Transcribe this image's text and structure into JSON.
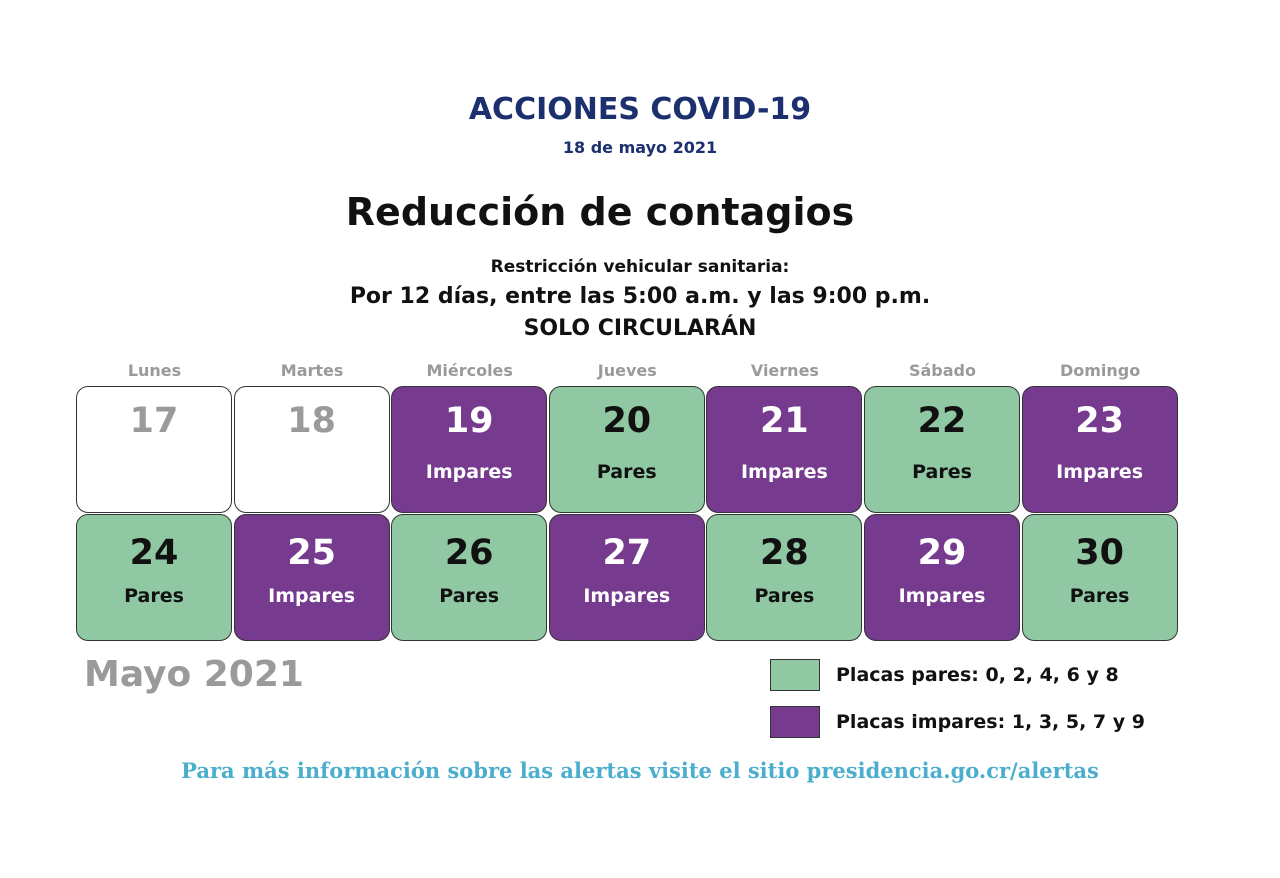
{
  "header": {
    "title": "ACCIONES COVID-19",
    "date": "18 de mayo 2021"
  },
  "headline": "Reducción de contagios",
  "subtitle": {
    "line1": "Restricción vehicular sanitaria:",
    "line2": "Por 12 días, entre las 5:00 a.m. y las 9:00 p.m.",
    "line3": "SOLO CIRCULARÁN"
  },
  "colors": {
    "title": "#1c2f6e",
    "pares": "#8fc8a2",
    "impares": "#763b8f",
    "footer": "#4aaecc",
    "inactive": "#9a9a9a"
  },
  "calendar": {
    "day_names": [
      "Lunes",
      "Martes",
      "Miércoles",
      "Jueves",
      "Viernes",
      "Sábado",
      "Domingo"
    ],
    "days": [
      {
        "num": "17",
        "label": "",
        "type": "none"
      },
      {
        "num": "18",
        "label": "",
        "type": "none"
      },
      {
        "num": "19",
        "label": "Impares",
        "type": "impar"
      },
      {
        "num": "20",
        "label": "Pares",
        "type": "par"
      },
      {
        "num": "21",
        "label": "Impares",
        "type": "impar"
      },
      {
        "num": "22",
        "label": "Pares",
        "type": "par"
      },
      {
        "num": "23",
        "label": "Impares",
        "type": "impar"
      },
      {
        "num": "24",
        "label": "Pares",
        "type": "par"
      },
      {
        "num": "25",
        "label": "Impares",
        "type": "impar"
      },
      {
        "num": "26",
        "label": "Pares",
        "type": "par"
      },
      {
        "num": "27",
        "label": "Impares",
        "type": "impar"
      },
      {
        "num": "28",
        "label": "Pares",
        "type": "par"
      },
      {
        "num": "29",
        "label": "Impares",
        "type": "impar"
      },
      {
        "num": "30",
        "label": "Pares",
        "type": "par"
      }
    ],
    "month": "Mayo 2021"
  },
  "legend": {
    "pares": "Placas pares: 0, 2, 4, 6 y 8",
    "impares": "Placas impares: 1, 3, 5, 7 y 9"
  },
  "footer": "Para más información sobre las alertas visite el sitio presidencia.go.cr/alertas"
}
